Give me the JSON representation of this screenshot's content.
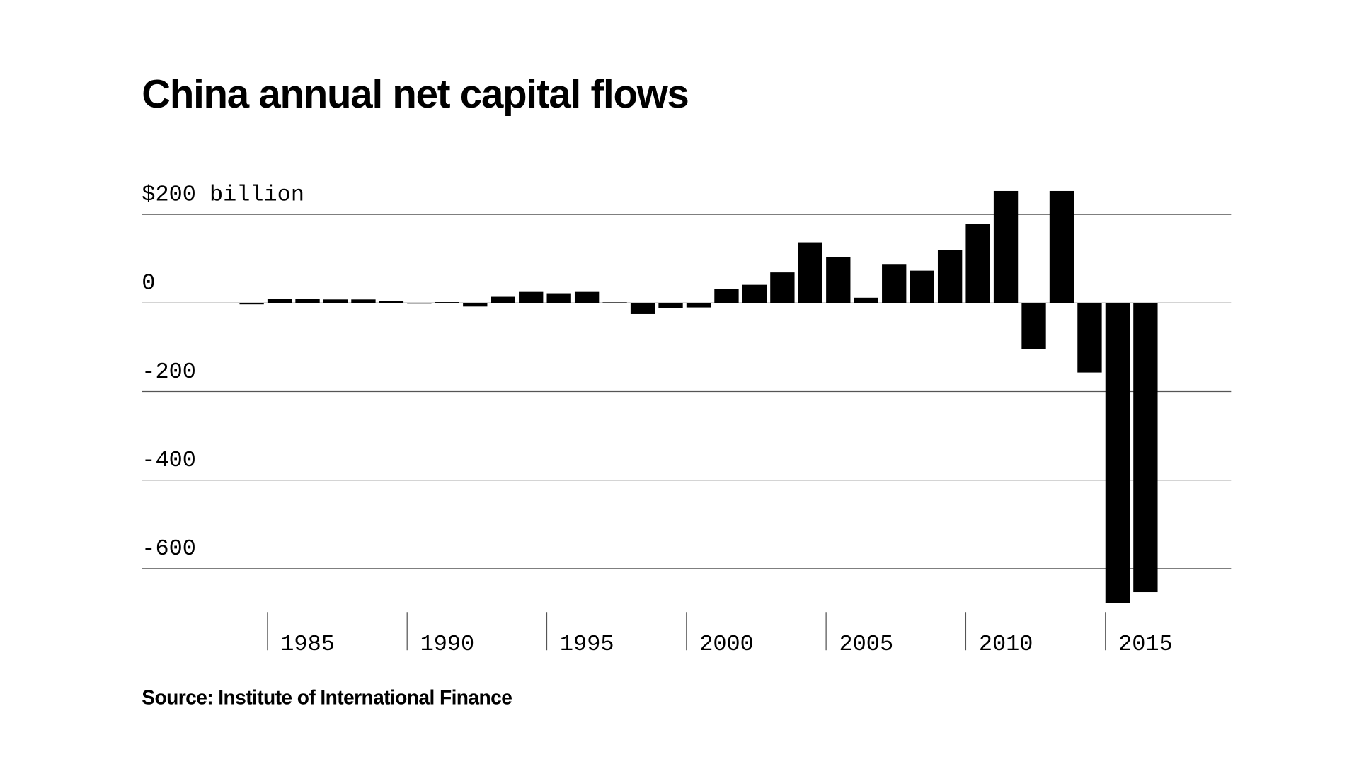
{
  "chart_data": {
    "type": "bar",
    "title": "China annual net capital flows",
    "source": "Source: Institute of International Finance",
    "x": [
      1984,
      1985,
      1986,
      1987,
      1988,
      1989,
      1990,
      1991,
      1992,
      1993,
      1994,
      1995,
      1996,
      1997,
      1998,
      1999,
      2000,
      2001,
      2002,
      2003,
      2004,
      2005,
      2006,
      2007,
      2008,
      2009,
      2010,
      2011,
      2012,
      2013,
      2014,
      2015,
      2016
    ],
    "values": [
      -3,
      10,
      9,
      8,
      8,
      5,
      -1,
      2,
      -8,
      14,
      25,
      22,
      25,
      1,
      -25,
      -12,
      -10,
      31,
      41,
      69,
      137,
      104,
      12,
      88,
      73,
      120,
      178,
      253,
      -104,
      253,
      -157,
      -678,
      -653
    ],
    "color": "#000000",
    "xlim": [
      1980.5,
      2019.5
    ],
    "xticks": [
      1985,
      1990,
      1995,
      2000,
      2005,
      2010,
      2015
    ],
    "ylim": [
      -700,
      260
    ],
    "yticks": [
      {
        "value": 200,
        "label": "$200 billion"
      },
      0,
      -200,
      -400,
      -600
    ],
    "grid": true
  }
}
